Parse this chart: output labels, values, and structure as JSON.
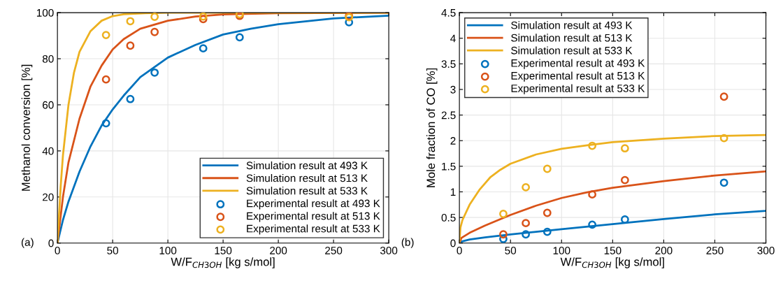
{
  "chart_data": [
    {
      "type": "line",
      "ylabel": "Methanol conversion [%]",
      "xlabel": "W/F$_{CH3OH}$ [kg s/mol]",
      "annotations": [
        "(a)"
      ],
      "xlim": [
        0,
        300
      ],
      "xticks": [
        0,
        50,
        100,
        150,
        200,
        250,
        300
      ],
      "ylim": [
        0,
        100
      ],
      "yticks": [
        0,
        20,
        40,
        60,
        80,
        100
      ],
      "grid": true,
      "legend": "bottom right",
      "series": [
        {
          "name": "Simulation result at 493 K",
          "color": "#0072bd",
          "marker": "none",
          "x": [
            0,
            5,
            10,
            20,
            30,
            40,
            50,
            60,
            75,
            100,
            125,
            150,
            175,
            200,
            250,
            300
          ],
          "values": [
            0,
            10,
            18,
            31,
            42,
            51,
            58,
            64,
            72,
            80.5,
            86,
            90.5,
            93,
            95,
            97.5,
            98.7
          ]
        },
        {
          "name": "Simulation result at 513 K",
          "color": "#d95319",
          "marker": "none",
          "x": [
            0,
            5,
            10,
            20,
            30,
            40,
            50,
            60,
            75,
            100,
            125,
            150,
            200,
            300
          ],
          "values": [
            0,
            20,
            35,
            54,
            68,
            77,
            84,
            88.5,
            93,
            96.5,
            98.3,
            99.2,
            99.8,
            100
          ]
        },
        {
          "name": "Simulation result at 533 K",
          "color": "#edb120",
          "marker": "none",
          "x": [
            0,
            3,
            5,
            10,
            15,
            20,
            30,
            40,
            50,
            60,
            80,
            100,
            300
          ],
          "values": [
            0,
            25,
            38,
            60,
            74,
            83,
            92,
            96.5,
            98.5,
            99.3,
            99.8,
            100,
            100
          ]
        },
        {
          "name": "Experimental result at 493 K",
          "color": "#0072bd",
          "type": "scatter",
          "marker": "circle",
          "x": [
            44,
            66,
            88,
            132,
            165,
            264
          ],
          "values": [
            52,
            62.5,
            74,
            84.5,
            89.3,
            95.8
          ]
        },
        {
          "name": "Experimental result at 513 K",
          "color": "#d95319",
          "type": "scatter",
          "marker": "circle",
          "x": [
            44,
            66,
            88,
            132,
            165,
            264
          ],
          "values": [
            71,
            85.7,
            91.6,
            97.2,
            98.6,
            98.6
          ]
        },
        {
          "name": "Experimental result at 533 K",
          "color": "#edb120",
          "type": "scatter",
          "marker": "circle",
          "x": [
            44,
            66,
            88,
            132,
            165,
            264
          ],
          "values": [
            90.3,
            96.3,
            98.2,
            98.3,
            99.3,
            98.0
          ]
        }
      ]
    },
    {
      "type": "line",
      "ylabel": "Mole fraction of CO [%]",
      "xlabel": "W/F$_{CH3OH}$ [kg s/mol]",
      "annotations": [
        "(b)"
      ],
      "xlim": [
        0,
        300
      ],
      "xticks": [
        0,
        50,
        100,
        150,
        200,
        250,
        300
      ],
      "ylim": [
        0,
        4.5
      ],
      "yticks": [
        0,
        0.5,
        1,
        1.5,
        2,
        2.5,
        3,
        3.5,
        4,
        4.5
      ],
      "grid": true,
      "legend": "top left",
      "series": [
        {
          "name": "Simulation result at 493 K",
          "color": "#0072bd",
          "marker": "none",
          "x": [
            0,
            2,
            10,
            25,
            50,
            75,
            100,
            150,
            200,
            250,
            300
          ],
          "values": [
            0,
            0.03,
            0.07,
            0.11,
            0.17,
            0.22,
            0.27,
            0.37,
            0.47,
            0.56,
            0.63
          ]
        },
        {
          "name": "Simulation result at 513 K",
          "color": "#d95319",
          "marker": "none",
          "x": [
            0,
            2,
            10,
            25,
            50,
            75,
            100,
            125,
            150,
            200,
            250,
            300
          ],
          "values": [
            0,
            0.1,
            0.2,
            0.34,
            0.55,
            0.73,
            0.88,
            0.99,
            1.08,
            1.21,
            1.32,
            1.4
          ]
        },
        {
          "name": "Simulation result at 533 K",
          "color": "#edb120",
          "marker": "none",
          "x": [
            0,
            1,
            3,
            10,
            20,
            30,
            40,
            50,
            75,
            100,
            125,
            150,
            200,
            250,
            300
          ],
          "values": [
            0,
            0.3,
            0.45,
            0.75,
            1.05,
            1.28,
            1.43,
            1.55,
            1.73,
            1.84,
            1.91,
            1.97,
            2.04,
            2.09,
            2.11
          ]
        },
        {
          "name": "Experimental result at 493 K",
          "color": "#0072bd",
          "type": "scatter",
          "marker": "circle",
          "x": [
            43,
            65,
            86,
            130,
            162,
            259
          ],
          "values": [
            0.08,
            0.17,
            0.22,
            0.36,
            0.46,
            1.18
          ]
        },
        {
          "name": "Experimental result at 513 K",
          "color": "#d95319",
          "type": "scatter",
          "marker": "circle",
          "x": [
            43,
            65,
            86,
            130,
            162,
            259
          ],
          "values": [
            0.17,
            0.39,
            0.59,
            0.95,
            1.23,
            2.86
          ]
        },
        {
          "name": "Experimental result at 533 K",
          "color": "#edb120",
          "type": "scatter",
          "marker": "circle",
          "x": [
            43,
            65,
            86,
            130,
            162,
            259
          ],
          "values": [
            0.57,
            1.09,
            1.45,
            1.9,
            1.85,
            2.05
          ]
        }
      ]
    }
  ]
}
